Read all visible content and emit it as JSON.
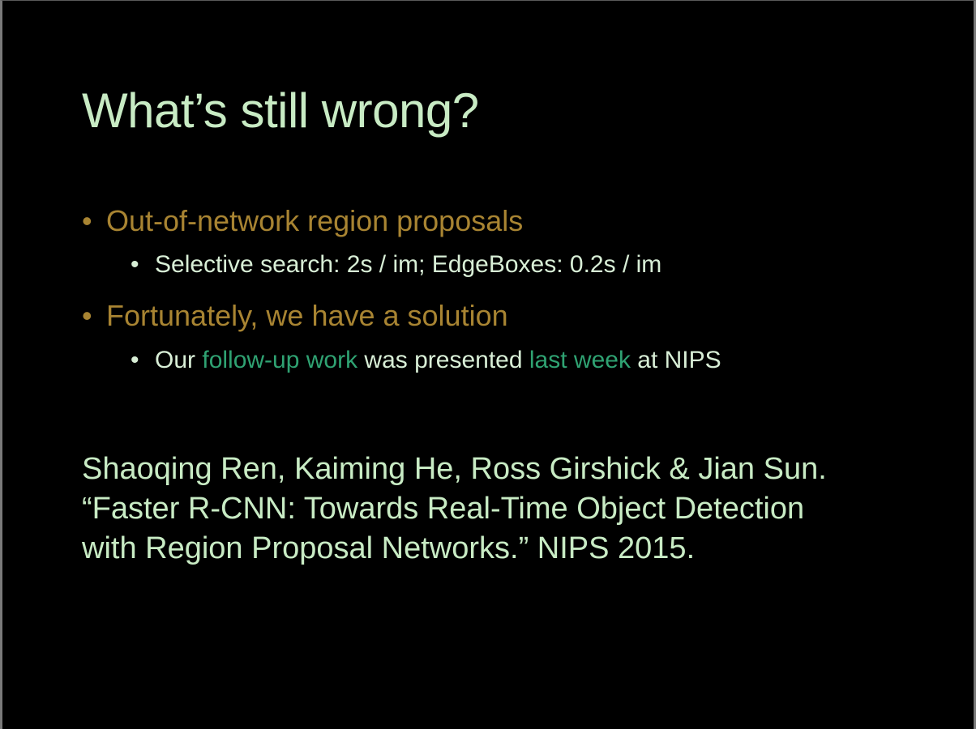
{
  "slide": {
    "title": "What’s still wrong?",
    "bullets": {
      "b1": {
        "marker": "•",
        "text": "Out-of-network region proposals"
      },
      "b2": {
        "marker": "•",
        "text": "Selective search: 2s / im;  EdgeBoxes: 0.2s / im"
      },
      "b3": {
        "marker": "•",
        "text": "Fortunately, we have a solution"
      },
      "b4": {
        "marker": "•",
        "part1": "Our ",
        "link1": "follow-up work",
        "part2": " was presented ",
        "link2": "last week",
        "part3": " at NIPS"
      }
    },
    "citation": {
      "line1": "Shaoqing Ren, Kaiming He, Ross Girshick & Jian Sun.",
      "line2": "“Faster R-CNN: Towards Real-Time Object Detection",
      "line3": "with Region Proposal Networks.” NIPS 2015."
    }
  },
  "colors": {
    "background": "#000000",
    "title": "#c8ebc4",
    "level1_bullet": "#a88432",
    "level2_bullet": "#d8eed6",
    "hyperlink": "#2fa272"
  }
}
